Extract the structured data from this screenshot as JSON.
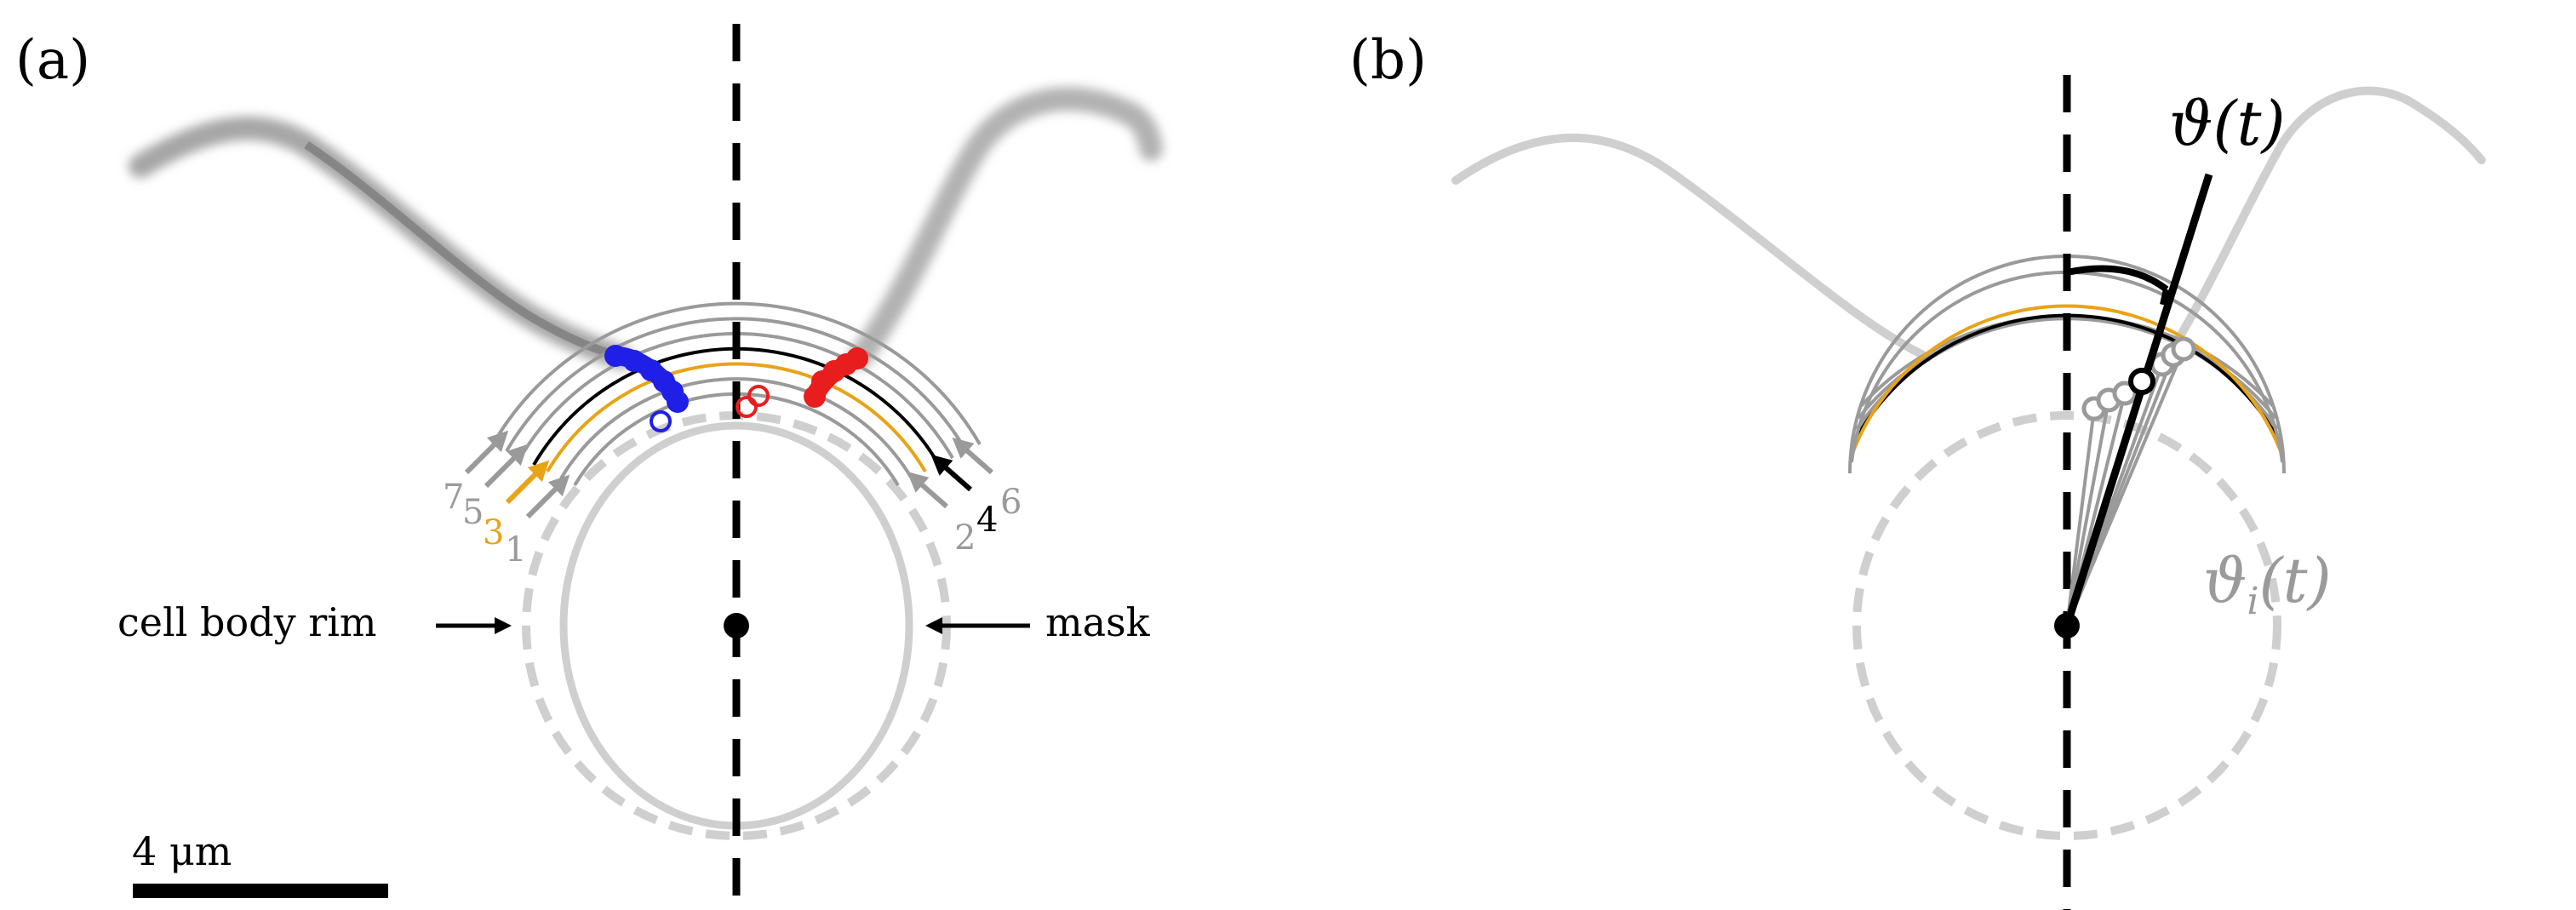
{
  "panel_a": {
    "label": "(a)",
    "left_annotation": "cell body rim",
    "right_annotation": "mask",
    "scale_bar": "4 μm",
    "ring_numbers_left": [
      {
        "text": "7",
        "color": "#9a9a9a"
      },
      {
        "text": "5",
        "color": "#9a9a9a"
      },
      {
        "text": "3",
        "color": "#e8a317"
      },
      {
        "text": "1",
        "color": "#9a9a9a"
      }
    ],
    "ring_numbers_right": [
      {
        "text": "2",
        "color": "#9a9a9a"
      },
      {
        "text": "4",
        "color": "#000000"
      },
      {
        "text": "6",
        "color": "#9a9a9a"
      }
    ]
  },
  "panel_b": {
    "label": "(b)",
    "theta_label": "ϑ(t)",
    "theta_i_label": "ϑ",
    "theta_i_sub": "i",
    "theta_i_tail": "(t)"
  },
  "colors": {
    "blue": "#1f1fe8",
    "red": "#e81e1e",
    "orange": "#e8a317",
    "grey": "#9a9a9a",
    "light_grey": "#cfcfcf",
    "black": "#000000"
  }
}
